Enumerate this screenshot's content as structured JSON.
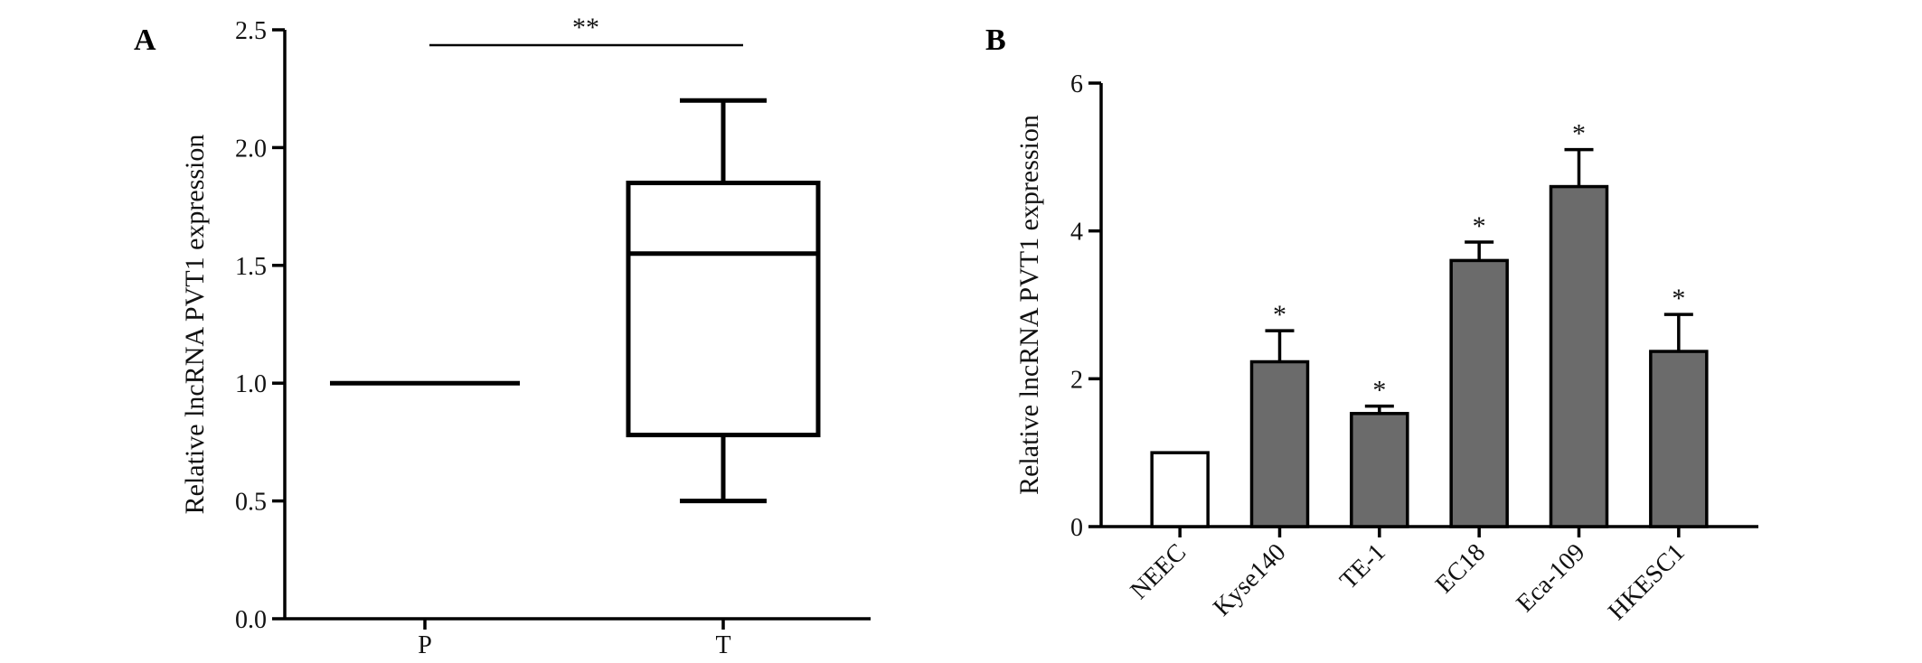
{
  "chart_data": [
    {
      "panel_label": "A",
      "type": "box",
      "ylabel": "Relative lncRNA PVT1 expression",
      "xlabel": "",
      "ylim": [
        0,
        2.5
      ],
      "yticks": [
        "0.0",
        "0.5",
        "1.0",
        "1.5",
        "2.0",
        "2.5"
      ],
      "grid": false,
      "categories": [
        "P",
        "T"
      ],
      "boxes": [
        {
          "category": "P",
          "min": 1.0,
          "q1": 1.0,
          "median": 1.0,
          "q3": 1.0,
          "max": 1.0
        },
        {
          "category": "T",
          "min": 0.5,
          "q1": 0.78,
          "median": 1.55,
          "q3": 1.85,
          "max": 2.2
        }
      ],
      "significance": {
        "label": "**",
        "between": [
          "P",
          "T"
        ]
      }
    },
    {
      "panel_label": "B",
      "type": "bar",
      "ylabel": "Relative lncRNA PVT1 expression",
      "xlabel": "",
      "ylim": [
        0,
        6
      ],
      "yticks": [
        "0",
        "2",
        "4",
        "6"
      ],
      "grid": false,
      "categories": [
        "NEEC",
        "Kyse140",
        "TE-1",
        "EC18",
        "Eca-109",
        "HKESC1"
      ],
      "values": [
        1.0,
        2.23,
        1.53,
        3.6,
        4.6,
        2.37
      ],
      "errors": [
        0.0,
        0.42,
        0.1,
        0.25,
        0.5,
        0.5
      ],
      "significance": [
        "",
        "*",
        "*",
        "*",
        "*",
        "*"
      ],
      "colors": {
        "control": "#ffffff",
        "tumor": "#6b6b6b"
      }
    }
  ]
}
